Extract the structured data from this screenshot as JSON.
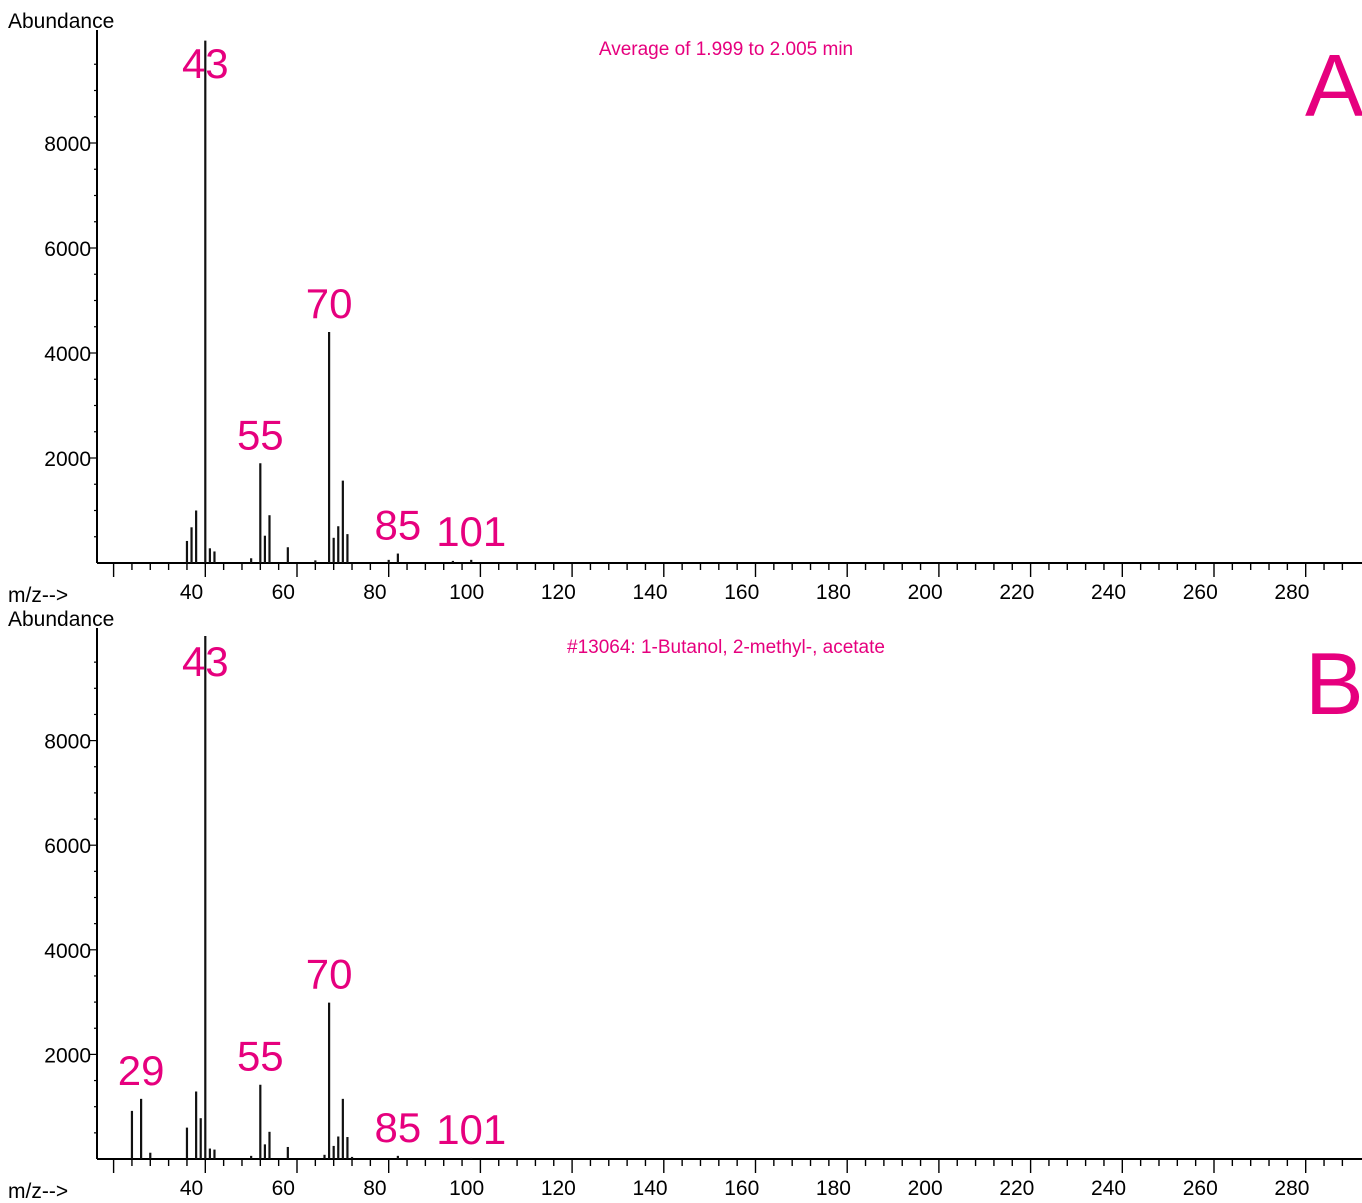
{
  "colors": {
    "label": "#e6007e",
    "axis": "#000000",
    "bar": "#111111"
  },
  "chart_data": [
    {
      "type": "bar",
      "panel_letter": "A",
      "title": "Average of 1.999 to 2.005 min",
      "xlabel": "m/z-->",
      "ylabel": "Abundance",
      "xlim": [
        18,
        293
      ],
      "ylim": [
        0,
        10000
      ],
      "x_ticks": [
        40,
        60,
        80,
        100,
        120,
        140,
        160,
        180,
        200,
        220,
        240,
        260,
        280
      ],
      "y_ticks": [
        2000,
        4000,
        6000,
        8000
      ],
      "peaks": [
        {
          "mz": 39,
          "abundance": 420
        },
        {
          "mz": 40,
          "abundance": 680
        },
        {
          "mz": 41,
          "abundance": 1000
        },
        {
          "mz": 43,
          "abundance": 9950
        },
        {
          "mz": 44,
          "abundance": 280
        },
        {
          "mz": 45,
          "abundance": 220
        },
        {
          "mz": 53,
          "abundance": 90
        },
        {
          "mz": 55,
          "abundance": 1900
        },
        {
          "mz": 56,
          "abundance": 520
        },
        {
          "mz": 57,
          "abundance": 910
        },
        {
          "mz": 61,
          "abundance": 300
        },
        {
          "mz": 67,
          "abundance": 50
        },
        {
          "mz": 70,
          "abundance": 4400
        },
        {
          "mz": 71,
          "abundance": 480
        },
        {
          "mz": 72,
          "abundance": 700
        },
        {
          "mz": 73,
          "abundance": 1570
        },
        {
          "mz": 74,
          "abundance": 550
        },
        {
          "mz": 83,
          "abundance": 60
        },
        {
          "mz": 85,
          "abundance": 180
        },
        {
          "mz": 97,
          "abundance": 40
        },
        {
          "mz": 101,
          "abundance": 60
        },
        {
          "mz": 207,
          "abundance": 20
        }
      ],
      "peak_labels": [
        {
          "text": "43",
          "mz": 43,
          "abundance": 9950
        },
        {
          "text": "55",
          "mz": 55,
          "abundance": 1900
        },
        {
          "text": "70",
          "mz": 70,
          "abundance": 4400
        },
        {
          "text": "85",
          "mz": 85,
          "abundance": 180
        },
        {
          "text": "101",
          "mz": 101,
          "abundance": 60
        }
      ]
    },
    {
      "type": "bar",
      "panel_letter": "B",
      "title": "#13064: 1-Butanol, 2-methyl-, acetate",
      "xlabel": "m/z-->",
      "ylabel": "Abundance",
      "xlim": [
        18,
        293
      ],
      "ylim": [
        0,
        10000
      ],
      "x_ticks": [
        40,
        60,
        80,
        100,
        120,
        140,
        160,
        180,
        200,
        220,
        240,
        260,
        280
      ],
      "y_ticks": [
        2000,
        4000,
        6000,
        8000
      ],
      "peaks": [
        {
          "mz": 27,
          "abundance": 920
        },
        {
          "mz": 29,
          "abundance": 1150
        },
        {
          "mz": 31,
          "abundance": 120
        },
        {
          "mz": 39,
          "abundance": 600
        },
        {
          "mz": 41,
          "abundance": 1290
        },
        {
          "mz": 42,
          "abundance": 780
        },
        {
          "mz": 43,
          "abundance": 9999
        },
        {
          "mz": 44,
          "abundance": 200
        },
        {
          "mz": 45,
          "abundance": 180
        },
        {
          "mz": 53,
          "abundance": 60
        },
        {
          "mz": 55,
          "abundance": 1420
        },
        {
          "mz": 56,
          "abundance": 280
        },
        {
          "mz": 57,
          "abundance": 520
        },
        {
          "mz": 61,
          "abundance": 230
        },
        {
          "mz": 69,
          "abundance": 80
        },
        {
          "mz": 70,
          "abundance": 2990
        },
        {
          "mz": 71,
          "abundance": 250
        },
        {
          "mz": 72,
          "abundance": 430
        },
        {
          "mz": 73,
          "abundance": 1150
        },
        {
          "mz": 74,
          "abundance": 420
        },
        {
          "mz": 75,
          "abundance": 40
        },
        {
          "mz": 85,
          "abundance": 60
        },
        {
          "mz": 101,
          "abundance": 20
        }
      ],
      "peak_labels": [
        {
          "text": "29",
          "mz": 29,
          "abundance": 1150
        },
        {
          "text": "43",
          "mz": 43,
          "abundance": 9999
        },
        {
          "text": "55",
          "mz": 55,
          "abundance": 1420
        },
        {
          "text": "70",
          "mz": 70,
          "abundance": 2990
        },
        {
          "text": "85",
          "mz": 85,
          "abundance": 60
        },
        {
          "text": "101",
          "mz": 101,
          "abundance": 20
        }
      ]
    }
  ]
}
